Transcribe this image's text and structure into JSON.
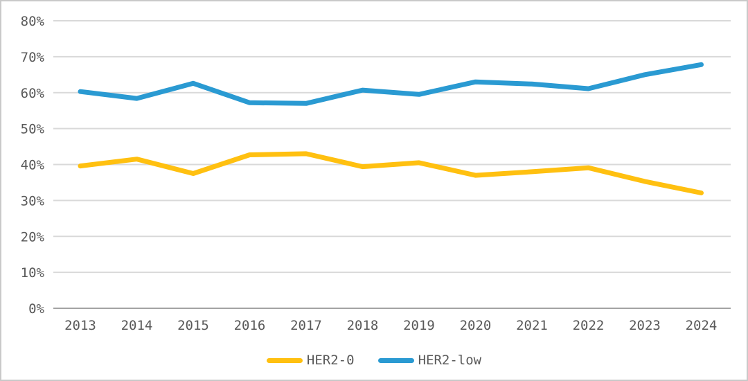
{
  "chart_data": {
    "type": "line",
    "x": [
      "2013",
      "2014",
      "2015",
      "2016",
      "2017",
      "2018",
      "2019",
      "2020",
      "2021",
      "2022",
      "2023",
      "2024"
    ],
    "series": [
      {
        "name": "HER2-0",
        "color": "#FFC010",
        "values": [
          39.6,
          41.5,
          37.5,
          42.7,
          43.0,
          39.4,
          40.5,
          37.0,
          38.0,
          39.1,
          35.3,
          32.1
        ]
      },
      {
        "name": "HER2-low",
        "color": "#2A9AD2",
        "values": [
          60.3,
          58.4,
          62.6,
          57.2,
          57.0,
          60.7,
          59.5,
          63.0,
          62.4,
          61.1,
          65.0,
          67.8
        ]
      }
    ],
    "title": "",
    "xlabel": "",
    "ylabel": "",
    "ylim": [
      0,
      80
    ],
    "y_tick_step": 10,
    "y_ticks": [
      "0%",
      "10%",
      "20%",
      "30%",
      "40%",
      "50%",
      "60%",
      "70%",
      "80%"
    ],
    "grid": true,
    "legend_position": "bottom"
  },
  "colors": {
    "background": "#FFFFFF",
    "border": "#C9C9C9",
    "gridline": "#D9D9D9",
    "axis_line": "#A3A3A3",
    "tick_text": "#595959"
  }
}
